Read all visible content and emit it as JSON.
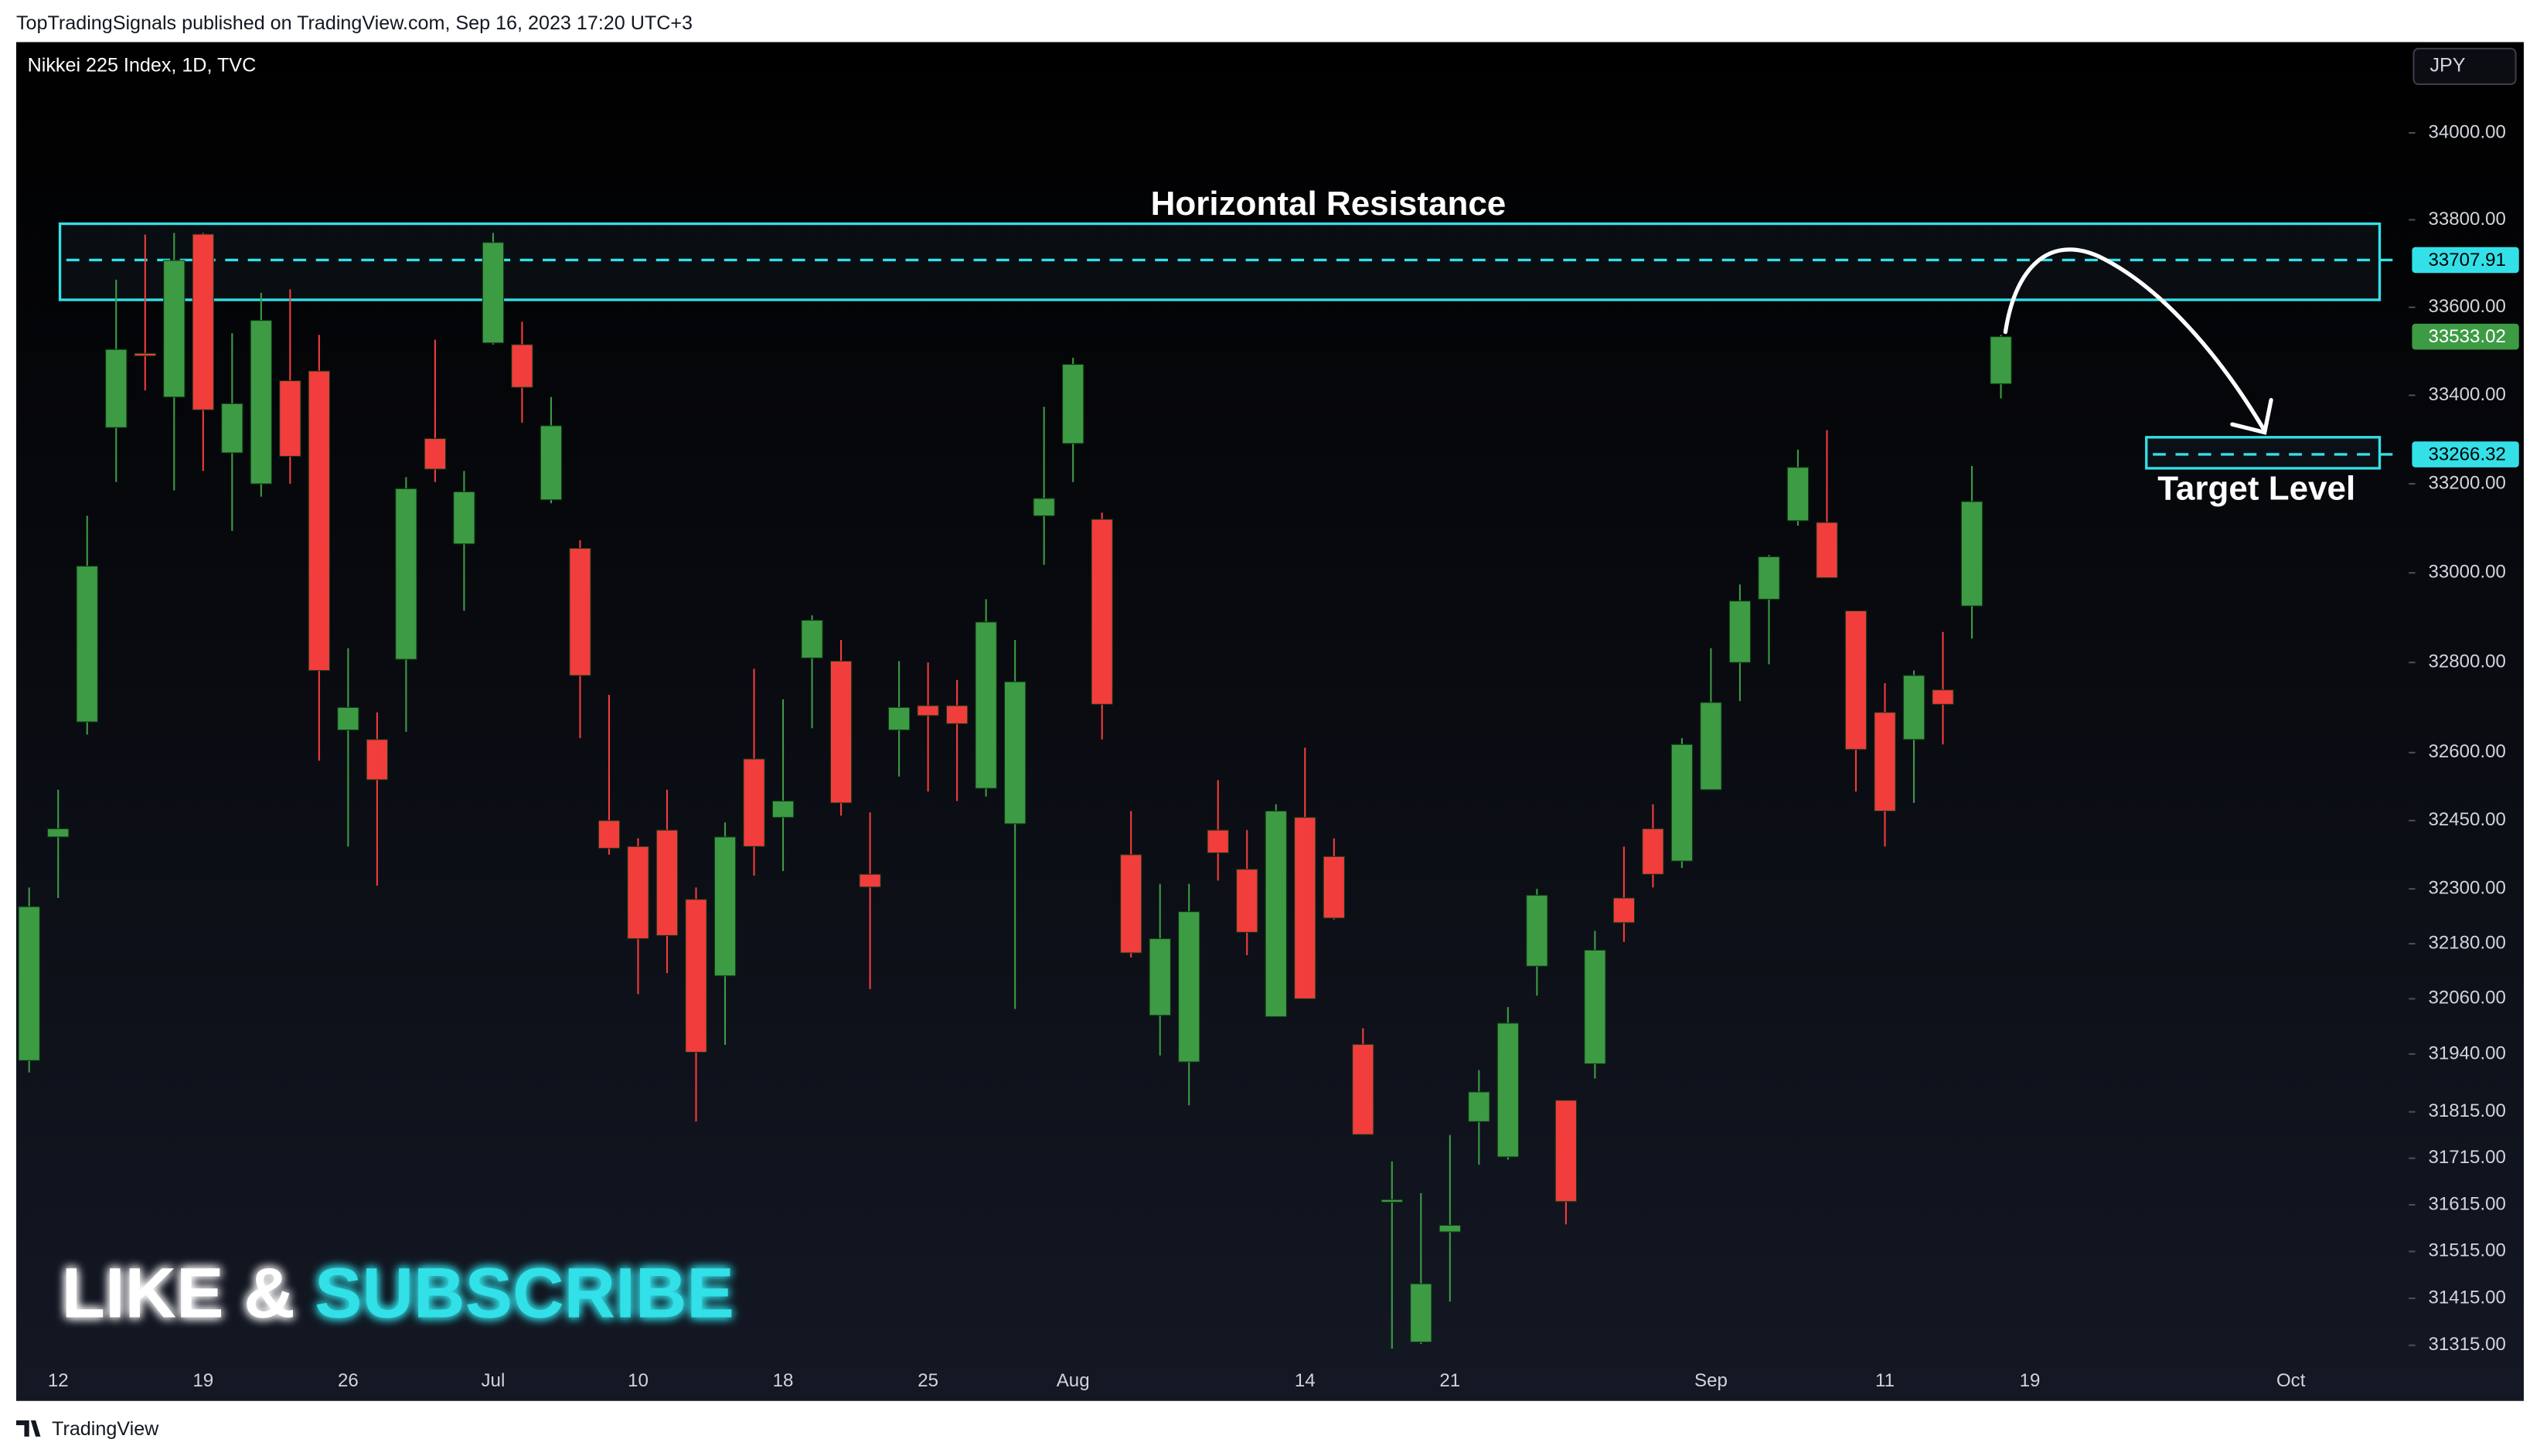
{
  "header": {
    "attribution": "TopTradingSignals published on TradingView.com, Sep 16, 2023 17:20 UTC+3",
    "brand": "TradingView"
  },
  "chart_data": {
    "type": "candlestick",
    "title": "Nikkei 225 Index, 1D, TVC",
    "currency": "JPY",
    "log": true,
    "grid": false,
    "up_color": "#3d9b44",
    "down_color": "#f23d3d",
    "zone_color": "#33e0e8",
    "categories": [
      null,
      "12",
      null,
      null,
      null,
      null,
      "19",
      null,
      null,
      null,
      null,
      "26",
      null,
      null,
      null,
      null,
      "Jul",
      null,
      null,
      null,
      null,
      "10",
      null,
      null,
      null,
      null,
      "18",
      null,
      null,
      null,
      null,
      "25",
      null,
      null,
      null,
      null,
      "Aug",
      null,
      null,
      null,
      null,
      null,
      null,
      null,
      "14",
      null,
      null,
      null,
      null,
      "21",
      null,
      null,
      null,
      null,
      null,
      null,
      null,
      null,
      "Sep",
      null,
      null,
      null,
      null,
      null,
      "11",
      null,
      null,
      null,
      null,
      "19",
      null,
      null,
      null,
      null,
      null,
      null,
      null,
      null,
      "Oct"
    ],
    "open": [
      31926,
      32414,
      32668,
      33327,
      33495,
      33396,
      33767,
      33270,
      33200,
      33433,
      33455,
      32650,
      32629,
      32807,
      33302,
      33065,
      33519,
      33515,
      33164,
      33055,
      32450,
      32393,
      32429,
      32277,
      32110,
      32586,
      32457,
      32810,
      32803,
      32332,
      32650,
      32704,
      32704,
      32521,
      32443,
      33128,
      33291,
      33120,
      32375,
      32024,
      31923,
      32429,
      32343,
      32021,
      32457,
      32371,
      31961,
      31622,
      31322,
      31557,
      31794,
      31718,
      32131,
      31840,
      31919,
      32280,
      32432,
      32361,
      32518,
      32800,
      32941,
      33117,
      33113,
      32915,
      32689,
      32629,
      32739,
      32926,
      33426,
      null,
      null,
      null,
      null,
      null,
      null,
      null,
      null,
      null,
      null
    ],
    "high": [
      32303,
      32518,
      33128,
      33663,
      33766,
      33770,
      33770,
      33541,
      33633,
      33641,
      33537,
      32832,
      32689,
      33215,
      33526,
      33229,
      33770,
      33567,
      33396,
      33073,
      32728,
      32411,
      32518,
      32303,
      32446,
      32786,
      32718,
      32905,
      32850,
      32468,
      32803,
      32800,
      32761,
      32941,
      32850,
      33374,
      33485,
      33135,
      32471,
      32311,
      32311,
      32539,
      32429,
      32486,
      32611,
      32411,
      31996,
      31708,
      31640,
      31765,
      31905,
      32042,
      32300,
      31840,
      32208,
      32393,
      32486,
      32632,
      32832,
      32974,
      33040,
      33277,
      33321,
      32915,
      32754,
      32782,
      32868,
      33240,
      33537,
      null,
      null,
      null,
      null,
      null,
      null,
      null,
      null,
      null,
      null
    ],
    "low": [
      31900,
      32280,
      32640,
      33204,
      33411,
      33185,
      33229,
      33094,
      33171,
      33200,
      32582,
      32393,
      32307,
      32646,
      33204,
      32915,
      33515,
      33338,
      33156,
      32632,
      32375,
      32070,
      32116,
      31794,
      31960,
      32329,
      32339,
      32654,
      32461,
      32081,
      32547,
      32514,
      32493,
      32503,
      32038,
      33018,
      33204,
      32629,
      32150,
      31937,
      31829,
      32318,
      32155,
      32021,
      32060,
      32233,
      31766,
      31308,
      31318,
      31408,
      31701,
      31712,
      32067,
      31573,
      31887,
      32184,
      32303,
      32346,
      32518,
      32714,
      32796,
      33106,
      32989,
      32514,
      32393,
      32489,
      32618,
      32853,
      33393,
      null,
      null,
      null,
      null,
      null,
      null,
      null,
      null,
      null,
      null
    ],
    "close": [
      32261,
      32432,
      33015,
      33504,
      33490,
      33707,
      33367,
      33381,
      33570,
      33262,
      32782,
      32700,
      32540,
      33189,
      33233,
      33182,
      33748,
      33418,
      33331,
      32771,
      32389,
      32191,
      32198,
      31944,
      32414,
      32393,
      32493,
      32894,
      32489,
      32304,
      32700,
      32682,
      32664,
      32890,
      32757,
      33167,
      33470,
      32707,
      32160,
      32191,
      32250,
      32379,
      32205,
      32471,
      32060,
      32236,
      31766,
      31626,
      31446,
      31571,
      31858,
      32007,
      32286,
      31622,
      32166,
      32226,
      32332,
      32618,
      32711,
      32937,
      33036,
      33237,
      32989,
      32607,
      32471,
      32771,
      32707,
      33160,
      33533.02,
      null,
      null,
      null,
      null,
      null,
      null,
      null,
      null,
      null,
      null
    ],
    "ylim": [
      31276,
      34210
    ],
    "yticks": [
      {
        "value": 34000,
        "label": "34000.00"
      },
      {
        "value": 33800,
        "label": "33800.00"
      },
      {
        "value": 33600,
        "label": "33600.00"
      },
      {
        "value": 33400,
        "label": "33400.00"
      },
      {
        "value": 33200,
        "label": "33200.00"
      },
      {
        "value": 33000,
        "label": "33000.00"
      },
      {
        "value": 32800,
        "label": "32800.00"
      },
      {
        "value": 32600,
        "label": "32600.00"
      },
      {
        "value": 32450,
        "label": "32450.00"
      },
      {
        "value": 32300,
        "label": "32300.00"
      },
      {
        "value": 32180,
        "label": "32180.00"
      },
      {
        "value": 32060,
        "label": "32060.00"
      },
      {
        "value": 31940,
        "label": "31940.00"
      },
      {
        "value": 31815,
        "label": "31815.00"
      },
      {
        "value": 31715,
        "label": "31715.00"
      },
      {
        "value": 31615,
        "label": "31615.00"
      },
      {
        "value": 31515,
        "label": "31515.00"
      },
      {
        "value": 31415,
        "label": "31415.00"
      },
      {
        "value": 31315,
        "label": "31315.00"
      }
    ],
    "zones": [
      {
        "label": "Horizontal Resistance",
        "low": 33617,
        "high": 33791,
        "level": 33707.91
      },
      {
        "label": "Target Level",
        "low": 33235,
        "high": 33305,
        "level": 33266.32
      }
    ],
    "promo": {
      "text": "LIKE &",
      "accent": "SUBSCRIBE"
    }
  }
}
